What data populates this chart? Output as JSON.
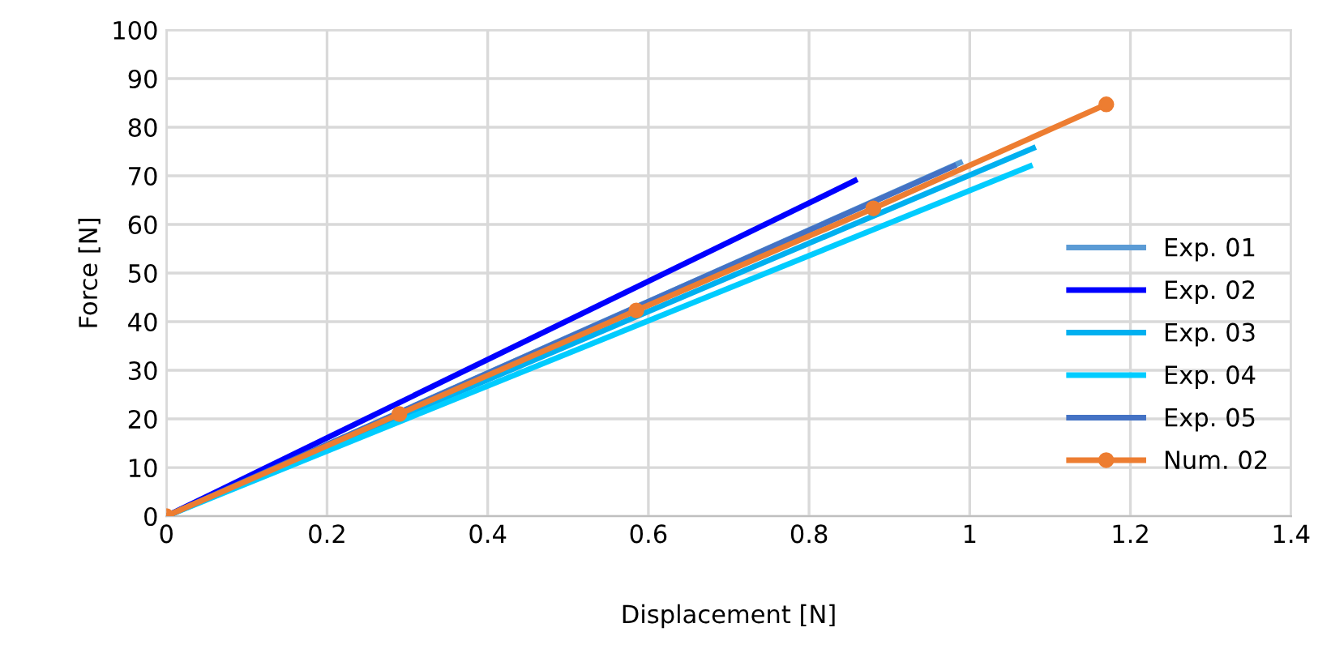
{
  "chart_data": {
    "type": "line",
    "xlabel": "Displacement [N]",
    "ylabel": "Force [N]",
    "xlim": [
      0,
      1.4
    ],
    "xticks": [
      0,
      0.2,
      0.4,
      0.6,
      0.8,
      1,
      1.2,
      1.4
    ],
    "ylim": [
      0,
      100
    ],
    "yticks": [
      0,
      10,
      20,
      30,
      40,
      50,
      60,
      70,
      80,
      90,
      100
    ],
    "grid": true,
    "legend": "right",
    "series": [
      {
        "name": "Exp. 01",
        "color": "#5b9bd5",
        "x": [
          0,
          0.988
        ],
        "values": [
          0,
          72.7
        ],
        "marker": "none"
      },
      {
        "name": "Exp. 02",
        "color": "#0000ff",
        "x": [
          0,
          0.857
        ],
        "values": [
          0,
          69
        ],
        "marker": "none"
      },
      {
        "name": "Exp. 03",
        "color": "#00b0f0",
        "x": [
          0,
          1.079
        ],
        "values": [
          0,
          75.7
        ],
        "marker": "none"
      },
      {
        "name": "Exp. 04",
        "color": "#00ccff",
        "x": [
          0,
          1.075
        ],
        "values": [
          0,
          72
        ],
        "marker": "none"
      },
      {
        "name": "Exp. 05",
        "color": "#4472c4",
        "x": [
          0,
          0.98
        ],
        "values": [
          0,
          72
        ],
        "marker": "none"
      },
      {
        "name": "Num. 02",
        "color": "#ed7d31",
        "x": [
          0,
          0.29,
          0.585,
          0.88,
          1.17
        ],
        "values": [
          0,
          21,
          42.3,
          63.3,
          84.7
        ],
        "marker": "circle"
      }
    ]
  }
}
